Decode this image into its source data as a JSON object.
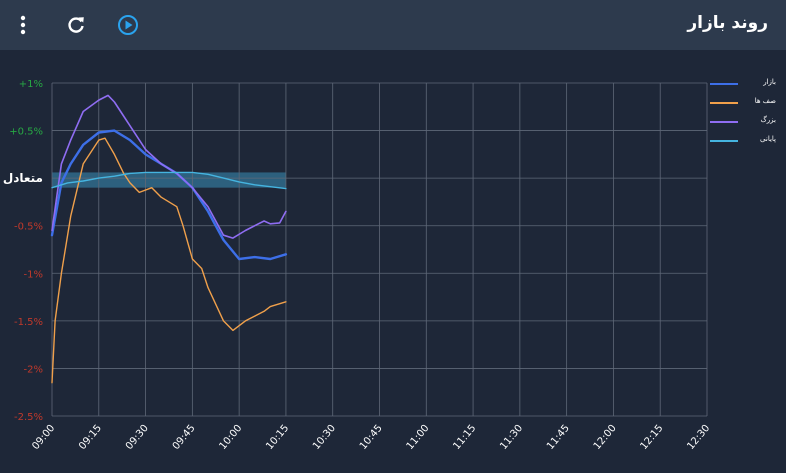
{
  "header": {
    "title": "روند بازار",
    "menu_icon": "more-vertical-icon",
    "refresh_icon": "refresh-icon",
    "play_icon": "play-circle-icon"
  },
  "colors": {
    "background": "#1e2738",
    "header": "#2d3a4d",
    "grid": "#5f6878",
    "positive_tick": "#27a844",
    "negative_tick": "#c0392b",
    "neutral_band": "#3a8fb8"
  },
  "chart_data": {
    "type": "line",
    "title": "",
    "xlabel": "",
    "ylabel": "",
    "x_ticks": [
      "09:00",
      "09:15",
      "09:30",
      "09:45",
      "10:00",
      "10:15",
      "10:30",
      "10:45",
      "11:00",
      "11:15",
      "11:30",
      "11:45",
      "12:00",
      "12:15",
      "12:30"
    ],
    "y_ticks": [
      {
        "value": 1,
        "label": "+1%",
        "tone": "positive"
      },
      {
        "value": 0.5,
        "label": "+0.5%",
        "tone": "positive"
      },
      {
        "value": 0,
        "label": "متعادل",
        "tone": "neutral"
      },
      {
        "value": -0.5,
        "label": "-0.5%",
        "tone": "negative"
      },
      {
        "value": -1,
        "label": "-1%",
        "tone": "negative"
      },
      {
        "value": -1.5,
        "label": "-1.5%",
        "tone": "negative"
      },
      {
        "value": -2,
        "label": "-2%",
        "tone": "negative"
      },
      {
        "value": -2.5,
        "label": "-2.5%",
        "tone": "negative"
      }
    ],
    "ylim": [
      -2.5,
      1
    ],
    "xlim_minutes": [
      0,
      210
    ],
    "grid": true,
    "legend_position": "right",
    "series": [
      {
        "name": "بازار",
        "color": "#3d6fe8",
        "width": 2.4,
        "x": [
          0,
          3,
          6,
          10,
          15,
          20,
          25,
          30,
          35,
          40,
          45,
          50,
          55,
          60,
          65,
          70,
          75
        ],
        "y": [
          -0.6,
          -0.05,
          0.15,
          0.35,
          0.48,
          0.5,
          0.4,
          0.25,
          0.15,
          0.05,
          -0.1,
          -0.35,
          -0.65,
          -0.85,
          -0.83,
          -0.85,
          -0.8
        ]
      },
      {
        "name": "صف ها",
        "color": "#f0a04b",
        "width": 1.4,
        "x": [
          0,
          1,
          3,
          6,
          10,
          15,
          17,
          20,
          23,
          25,
          28,
          32,
          35,
          40,
          42,
          45,
          48,
          50,
          55,
          58,
          62,
          65,
          68,
          70,
          75
        ],
        "y": [
          -2.15,
          -1.5,
          -1.0,
          -0.4,
          0.15,
          0.4,
          0.42,
          0.25,
          0.05,
          -0.05,
          -0.15,
          -0.1,
          -0.2,
          -0.3,
          -0.5,
          -0.85,
          -0.95,
          -1.15,
          -1.5,
          -1.6,
          -1.5,
          -1.45,
          -1.4,
          -1.35,
          -1.3
        ]
      },
      {
        "name": "بزرگ",
        "color": "#8f6df2",
        "width": 1.6,
        "x": [
          0,
          3,
          6,
          10,
          15,
          18,
          20,
          25,
          30,
          35,
          40,
          45,
          50,
          55,
          58,
          62,
          65,
          68,
          70,
          73,
          75
        ],
        "y": [
          -0.55,
          0.15,
          0.4,
          0.7,
          0.82,
          0.87,
          0.8,
          0.55,
          0.3,
          0.15,
          0.05,
          -0.1,
          -0.3,
          -0.6,
          -0.63,
          -0.55,
          -0.5,
          -0.45,
          -0.48,
          -0.47,
          -0.35
        ]
      },
      {
        "name": "پایانی",
        "color": "#45b4e0",
        "width": 1.4,
        "x": [
          0,
          5,
          10,
          15,
          20,
          25,
          30,
          35,
          40,
          45,
          50,
          55,
          60,
          65,
          70,
          75
        ],
        "y": [
          -0.1,
          -0.05,
          -0.03,
          0.0,
          0.02,
          0.05,
          0.06,
          0.06,
          0.06,
          0.06,
          0.04,
          0.0,
          -0.04,
          -0.07,
          -0.09,
          -0.11
        ]
      }
    ]
  }
}
